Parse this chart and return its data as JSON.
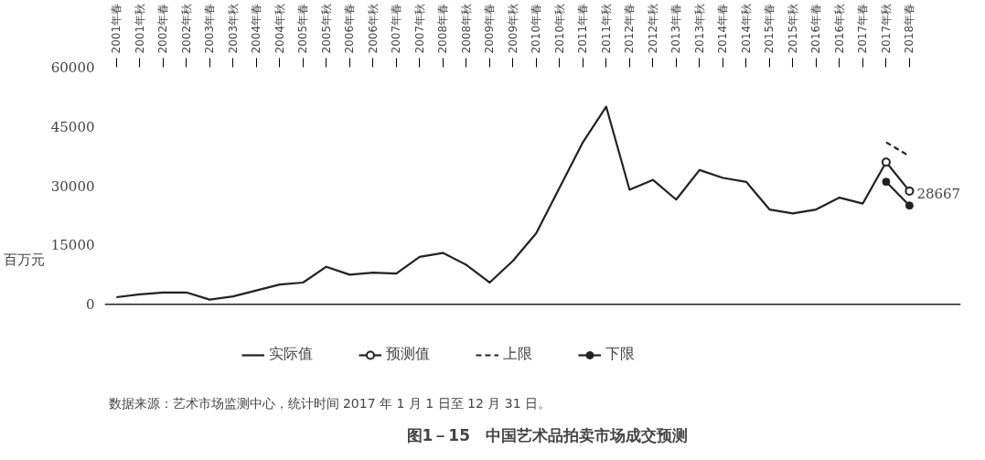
{
  "chart_data": {
    "type": "line",
    "title": "图1－15　中国艺术品拍卖市场成交预测",
    "ylabel": "百万元",
    "categories": [
      "2001年春",
      "2001年秋",
      "2002年春",
      "2002年秋",
      "2003年春",
      "2003年秋",
      "2004年春",
      "2004年秋",
      "2005年春",
      "2005年秋",
      "2006年春",
      "2006年秋",
      "2007年春",
      "2007年秋",
      "2008年春",
      "2008年秋",
      "2009年春",
      "2009年秋",
      "2010年春",
      "2010年秋",
      "2011年春",
      "2011年秋",
      "2012年春",
      "2012年秋",
      "2013年春",
      "2013年秋",
      "2014年春",
      "2014年秋",
      "2015年春",
      "2015年秋",
      "2016年春",
      "2016年秋",
      "2017年春",
      "2017年秋",
      "2018年春"
    ],
    "series": [
      {
        "name": "实际值",
        "color": "#222222",
        "marker": "none",
        "line_style": "solid",
        "values": [
          1800,
          2500,
          3000,
          3000,
          1200,
          2000,
          3500,
          5000,
          5500,
          9500,
          7500,
          8000,
          7800,
          12000,
          13000,
          10000,
          5500,
          11000,
          18000,
          29500,
          41000,
          50000,
          29000,
          31500,
          26500,
          34000,
          32000,
          31000,
          24000,
          23000,
          24000,
          27000,
          25500,
          36000,
          null
        ]
      },
      {
        "name": "预测值",
        "color": "#222222",
        "marker": "circle",
        "line_style": "solid",
        "values": [
          null,
          null,
          null,
          null,
          null,
          null,
          null,
          null,
          null,
          null,
          null,
          null,
          null,
          null,
          null,
          null,
          null,
          null,
          null,
          null,
          null,
          null,
          null,
          null,
          null,
          null,
          null,
          null,
          null,
          null,
          null,
          null,
          null,
          36000,
          28667
        ]
      },
      {
        "name": "上限",
        "color": "#222222",
        "marker": "none",
        "line_style": "dashed",
        "values": [
          null,
          null,
          null,
          null,
          null,
          null,
          null,
          null,
          null,
          null,
          null,
          null,
          null,
          null,
          null,
          null,
          null,
          null,
          null,
          null,
          null,
          null,
          null,
          null,
          null,
          null,
          null,
          null,
          null,
          null,
          null,
          null,
          null,
          41000,
          37500
        ]
      },
      {
        "name": "下限",
        "color": "#222222",
        "marker": "dot",
        "line_style": "solid",
        "values": [
          null,
          null,
          null,
          null,
          null,
          null,
          null,
          null,
          null,
          null,
          null,
          null,
          null,
          null,
          null,
          null,
          null,
          null,
          null,
          null,
          null,
          null,
          null,
          null,
          null,
          null,
          null,
          null,
          null,
          null,
          null,
          null,
          null,
          31000,
          25000
        ]
      }
    ],
    "ylim": [
      0,
      60000
    ],
    "yticks": [
      0,
      15000,
      30000,
      45000,
      60000
    ],
    "grid": false,
    "legend": "bottom",
    "annotations": [
      {
        "text": "28667",
        "x": "2018年春",
        "y": 28667
      },
      "数据来源：艺术市场监测中心，统计时间 2017 年 1 月 1 日至 12 月 31 日。"
    ]
  }
}
